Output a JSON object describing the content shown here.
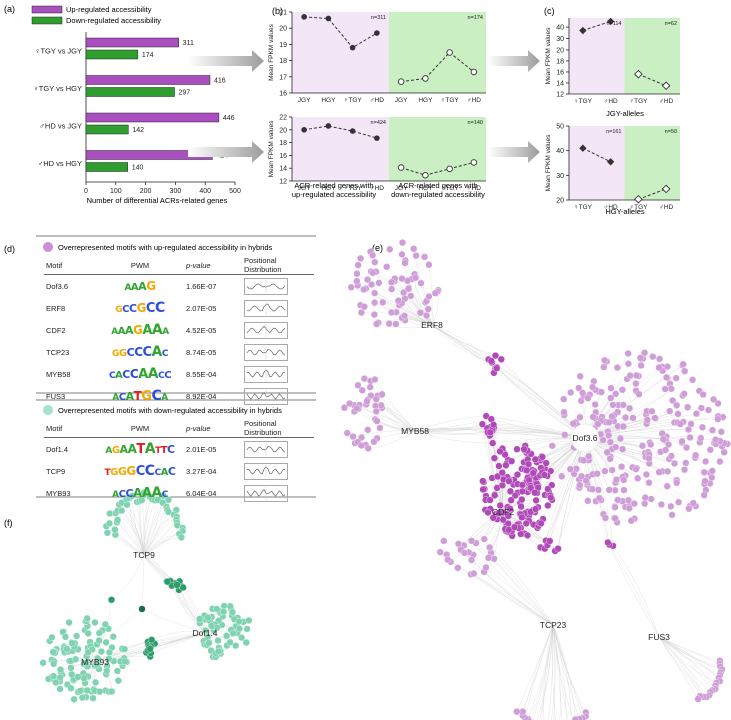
{
  "panel_labels": {
    "a": "(a)",
    "b": "(b)",
    "c": "(c)",
    "d": "(d)",
    "e": "(e)",
    "f": "(f)"
  },
  "colors": {
    "up": "#a94fc0",
    "down": "#2f9e2f",
    "up_bg": "#f3e6f6",
    "down_bg": "#c9efc3",
    "node_up": "#cf9ed8",
    "node_up_dark": "#b14ab9",
    "node_down": "#7fd3b0",
    "node_down_dark": "#2e9b6a"
  },
  "chart_data": [
    {
      "type": "bar",
      "panel": "a",
      "categories": [
        "♀TGY vs JGY",
        "♀TGY vs HGY",
        "♂HD vs JGY",
        "♂HD vs HGY"
      ],
      "series": [
        {
          "name": "Up-regulated accessibility",
          "values": [
            311,
            416,
            446,
            424
          ]
        },
        {
          "name": "Down-regulated accessibility",
          "values": [
            174,
            297,
            142,
            140
          ]
        }
      ],
      "xlabel": "Number of differential ACRs-related genes",
      "xlim": [
        0,
        500
      ],
      "xticks": [
        0,
        100,
        200,
        300,
        400,
        500
      ],
      "legend": "top-left"
    },
    {
      "type": "line",
      "panel": "b-top",
      "categories": [
        "JGY",
        "HGY",
        "♀TGY",
        "♂HD",
        "JGY",
        "HGY",
        "♀TGY",
        "♂HD"
      ],
      "values": [
        20.7,
        20.6,
        18.8,
        19.7,
        16.7,
        16.9,
        18.5,
        17.3
      ],
      "ylabel": "Mean FPKM values",
      "ylim": [
        16,
        21
      ],
      "yticks": [
        16,
        17,
        18,
        19,
        20,
        21
      ],
      "n_labels": [
        "n=311",
        "n=174"
      ]
    },
    {
      "type": "line",
      "panel": "b-bottom",
      "categories": [
        "JGY",
        "HGY",
        "♀TGY",
        "♂HD",
        "JGY",
        "HGY",
        "♀TGY",
        "♂HD"
      ],
      "values": [
        20.0,
        20.6,
        19.8,
        18.7,
        14.1,
        12.9,
        13.9,
        14.9
      ],
      "ylabel": "Mean FPKM values",
      "ylim": [
        12,
        22
      ],
      "yticks": [
        12,
        14,
        16,
        18,
        20,
        22
      ],
      "n_labels": [
        "n=424",
        "n=140"
      ],
      "captions": [
        "ACR-related genes with up-regulated accessibility",
        "ACR-related genes with down-regulated accessibility"
      ]
    },
    {
      "type": "line",
      "panel": "c-top",
      "categories": [
        "♀TGY",
        "♂HD",
        "♀TGY",
        "♂HD"
      ],
      "values": [
        37,
        45,
        15.6,
        13.5
      ],
      "ylabel": "Mean FPKM values",
      "ylim": [
        12,
        48
      ],
      "yticks": [
        12,
        14,
        16,
        18,
        20,
        30,
        40
      ],
      "n_labels": [
        "n=114",
        "n=62"
      ],
      "caption": "JGY-alleles"
    },
    {
      "type": "line",
      "panel": "c-bottom",
      "categories": [
        "♀TGY",
        "♂HD",
        "♀TGY",
        "♂HD"
      ],
      "values": [
        41,
        35.5,
        20.3,
        24.5
      ],
      "ylabel": "Mean FPKM values",
      "ylim": [
        20,
        50
      ],
      "yticks": [
        20,
        30,
        40,
        50
      ],
      "n_labels": [
        "n=161",
        "n=50"
      ],
      "caption": "HGY-alleles"
    }
  ],
  "motif_up": {
    "title": "Overrepresented motifs with up-regulated accessibility in hybrids",
    "headers": {
      "motif": "Motif",
      "pwm": "PWM",
      "pvalue": "p-value",
      "pos": "Positional Distribution"
    },
    "rows": [
      {
        "motif": "Dof3.6",
        "pwm": "AAAG",
        "pvalue": "1.66E-07"
      },
      {
        "motif": "ERF8",
        "pwm": "GCCGCC",
        "pvalue": "2.07E-05"
      },
      {
        "motif": "CDF2",
        "pwm": "AAAGAAA",
        "pvalue": "4.52E-05"
      },
      {
        "motif": "TCP23",
        "pwm": "GGCCCAC",
        "pvalue": "8.74E-05"
      },
      {
        "motif": "MYB58",
        "pwm": "CACCAACC",
        "pvalue": "8.55E-04"
      },
      {
        "motif": "FUS3",
        "pwm": "ACATGCA",
        "pvalue": "8.92E-04"
      }
    ]
  },
  "motif_down": {
    "title": "Overrepresented motifs with down-regulated accessibility in hybrids",
    "headers": {
      "motif": "Motif",
      "pwm": "PWM",
      "pvalue": "p-value",
      "pos": "Positional Distribution"
    },
    "rows": [
      {
        "motif": "Dof1.4",
        "pwm": "AGAATATTC",
        "pvalue": "2.01E-05"
      },
      {
        "motif": "TCP9",
        "pwm": "TGGGCCCAC",
        "pvalue": "3.27E-04"
      },
      {
        "motif": "MYB93",
        "pwm": "ACCAAAC",
        "pvalue": "6.04E-04"
      }
    ]
  },
  "network_e": {
    "hubs": [
      "ERF8",
      "MYB58",
      "Dof3.6",
      "CDF2",
      "TCP23",
      "FUS3"
    ]
  },
  "network_f": {
    "hubs": [
      "TCP9",
      "MYB93",
      "Dof1.4"
    ]
  }
}
